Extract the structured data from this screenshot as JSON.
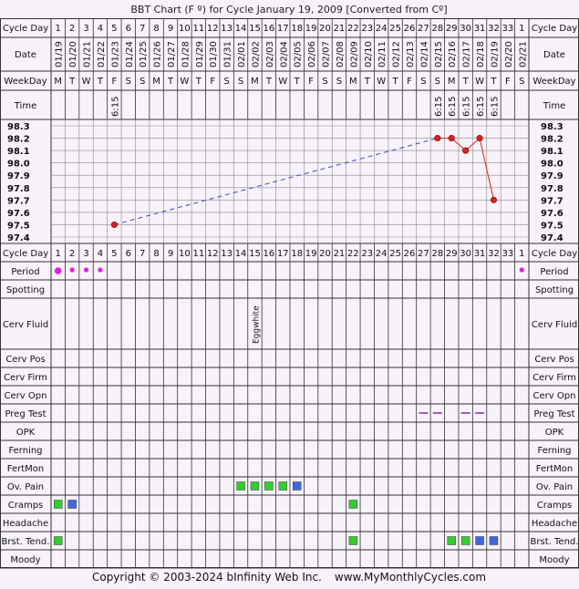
{
  "title": "BBT Chart (F º) for Cycle January 19, 2009  [Converted from Cº]",
  "labels": {
    "cycle_day": "Cycle Day",
    "date": "Date",
    "weekday": "WeekDay",
    "time": "Time"
  },
  "chart_data": {
    "type": "line",
    "title": "BBT Chart (F º) for Cycle January 19, 2009  [Converted from Cº]",
    "ylim": [
      97.4,
      98.3
    ],
    "y_ticks": [
      "98.3",
      "98.2",
      "98.1",
      "98.0",
      "97.9",
      "97.8",
      "97.7",
      "97.6",
      "97.5",
      "97.4"
    ],
    "cycle_days": [
      "1",
      "2",
      "3",
      "4",
      "5",
      "6",
      "7",
      "8",
      "9",
      "10",
      "11",
      "12",
      "13",
      "14",
      "15",
      "16",
      "17",
      "18",
      "19",
      "20",
      "21",
      "22",
      "23",
      "24",
      "25",
      "26",
      "27",
      "28",
      "29",
      "30",
      "31",
      "32",
      "33",
      "1"
    ],
    "dates": [
      "01/19",
      "01/20",
      "01/21",
      "01/22",
      "01/23",
      "01/24",
      "01/25",
      "01/26",
      "01/27",
      "01/28",
      "01/29",
      "01/30",
      "01/31",
      "02/01",
      "02/02",
      "02/03",
      "02/04",
      "02/05",
      "02/06",
      "02/07",
      "02/08",
      "02/09",
      "02/10",
      "02/11",
      "02/12",
      "02/13",
      "02/14",
      "02/15",
      "02/16",
      "02/17",
      "02/18",
      "02/19",
      "02/20",
      "02/21"
    ],
    "weekdays": [
      "M",
      "T",
      "W",
      "T",
      "F",
      "S",
      "S",
      "M",
      "T",
      "W",
      "T",
      "F",
      "S",
      "S",
      "M",
      "T",
      "W",
      "T",
      "F",
      "S",
      "S",
      "M",
      "T",
      "W",
      "T",
      "F",
      "S",
      "S",
      "M",
      "T",
      "W",
      "T",
      "F",
      "S"
    ],
    "times": {
      "4": "6:15",
      "27": "6:15",
      "28": "6:15",
      "29": "6:15",
      "30": "6:15",
      "31": "6:15"
    },
    "temps": [
      {
        "day_index": 4,
        "value": 97.5
      },
      {
        "day_index": 27,
        "value": 98.2
      },
      {
        "day_index": 28,
        "value": 98.2
      },
      {
        "day_index": 29,
        "value": 98.1
      },
      {
        "day_index": 30,
        "value": 98.2
      },
      {
        "day_index": 31,
        "value": 97.7
      }
    ],
    "colors": {
      "temp_line": "#e02020",
      "temp_point": "#e02020",
      "gap_line": "#3a48d8",
      "period": "#e020e0",
      "green": "#33cc33",
      "blue": "#4466dd",
      "preg_test": "#8a3aa8"
    },
    "rows": [
      {
        "name": "period",
        "label": "Period",
        "marks": [
          {
            "day": 0,
            "kind": "dot-large"
          },
          {
            "day": 1,
            "kind": "dot"
          },
          {
            "day": 2,
            "kind": "dot"
          },
          {
            "day": 3,
            "kind": "dot"
          },
          {
            "day": 33,
            "kind": "dot"
          }
        ]
      },
      {
        "name": "spotting",
        "label": "Spotting",
        "marks": []
      },
      {
        "name": "cerv-fluid",
        "label": "Cerv Fluid",
        "marks": [
          {
            "day": 14,
            "kind": "text",
            "text": "Eggwhite"
          }
        ]
      },
      {
        "name": "cerv-pos",
        "label": "Cerv Pos",
        "marks": []
      },
      {
        "name": "cerv-firm",
        "label": "Cerv Firm",
        "marks": []
      },
      {
        "name": "cerv-opn",
        "label": "Cerv Opn",
        "marks": []
      },
      {
        "name": "preg-test",
        "label": "Preg Test",
        "marks": [
          {
            "day": 26,
            "kind": "dash"
          },
          {
            "day": 27,
            "kind": "dash"
          },
          {
            "day": 29,
            "kind": "dash"
          },
          {
            "day": 30,
            "kind": "dash"
          }
        ]
      },
      {
        "name": "opk",
        "label": "OPK",
        "marks": []
      },
      {
        "name": "ferning",
        "label": "Ferning",
        "marks": []
      },
      {
        "name": "fertmon",
        "label": "FertMon",
        "marks": []
      },
      {
        "name": "ov-pain",
        "label": "Ov. Pain",
        "marks": [
          {
            "day": 13,
            "kind": "green"
          },
          {
            "day": 14,
            "kind": "green"
          },
          {
            "day": 15,
            "kind": "green"
          },
          {
            "day": 16,
            "kind": "green"
          },
          {
            "day": 17,
            "kind": "blue"
          }
        ]
      },
      {
        "name": "cramps",
        "label": "Cramps",
        "marks": [
          {
            "day": 0,
            "kind": "green"
          },
          {
            "day": 1,
            "kind": "blue"
          },
          {
            "day": 21,
            "kind": "green"
          }
        ]
      },
      {
        "name": "headache",
        "label": "Headache",
        "marks": []
      },
      {
        "name": "brst-tend",
        "label": "Brst. Tend.",
        "marks": [
          {
            "day": 0,
            "kind": "green"
          },
          {
            "day": 21,
            "kind": "green"
          },
          {
            "day": 28,
            "kind": "green"
          },
          {
            "day": 29,
            "kind": "green"
          },
          {
            "day": 30,
            "kind": "blue"
          },
          {
            "day": 31,
            "kind": "blue"
          }
        ]
      },
      {
        "name": "moody",
        "label": "Moody",
        "marks": []
      }
    ]
  },
  "footer": {
    "copyright": "Copyright © 2003-2024 bInfinity Web Inc.",
    "site": "www.MyMonthlyCycles.com"
  }
}
